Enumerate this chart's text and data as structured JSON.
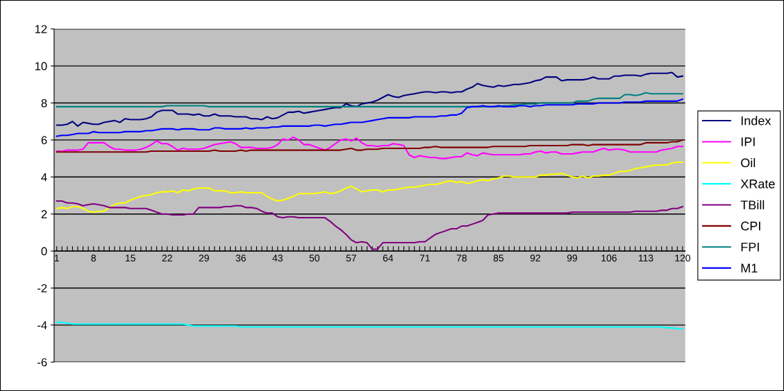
{
  "chart_data": {
    "type": "line",
    "categories": [
      "1",
      null,
      null,
      null,
      null,
      null,
      null,
      "8",
      null,
      null,
      null,
      null,
      null,
      null,
      "15",
      null,
      null,
      null,
      null,
      null,
      null,
      "22",
      null,
      null,
      null,
      null,
      null,
      null,
      "29",
      null,
      null,
      null,
      null,
      null,
      null,
      "36",
      null,
      null,
      null,
      null,
      null,
      null,
      "43",
      null,
      null,
      null,
      null,
      null,
      null,
      "50",
      null,
      null,
      null,
      null,
      null,
      null,
      "57",
      null,
      null,
      null,
      null,
      null,
      null,
      "64",
      null,
      null,
      null,
      null,
      null,
      null,
      "71",
      null,
      null,
      null,
      null,
      null,
      null,
      "78",
      null,
      null,
      null,
      null,
      null,
      null,
      "85",
      null,
      null,
      null,
      null,
      null,
      null,
      "92",
      null,
      null,
      null,
      null,
      null,
      null,
      "99",
      null,
      null,
      null,
      null,
      null,
      null,
      "106",
      null,
      null,
      null,
      null,
      null,
      null,
      "113",
      null,
      null,
      null,
      null,
      null,
      null,
      "120"
    ],
    "ylim": [
      -6,
      12
    ],
    "yticks": [
      -6,
      -4,
      -2,
      0,
      2,
      4,
      6,
      8,
      10,
      12
    ],
    "grid": "y",
    "legend": "right",
    "marker": "none",
    "line_style": "solid",
    "series": [
      {
        "name": "Index",
        "color": "#000080",
        "values": [
          6.8,
          6.8,
          6.85,
          7.0,
          6.75,
          6.95,
          6.9,
          6.85,
          6.85,
          6.95,
          7.0,
          7.05,
          6.95,
          7.15,
          7.1,
          7.1,
          7.1,
          7.15,
          7.25,
          7.5,
          7.6,
          7.6,
          7.6,
          7.4,
          7.4,
          7.4,
          7.35,
          7.4,
          7.3,
          7.3,
          7.4,
          7.3,
          7.3,
          7.3,
          7.25,
          7.25,
          7.25,
          7.15,
          7.15,
          7.1,
          7.25,
          7.15,
          7.2,
          7.35,
          7.5,
          7.5,
          7.55,
          7.45,
          7.5,
          7.55,
          7.6,
          7.65,
          7.7,
          7.75,
          7.75,
          7.95,
          7.85,
          7.8,
          7.95,
          8.0,
          8.05,
          8.15,
          8.3,
          8.45,
          8.35,
          8.3,
          8.4,
          8.45,
          8.5,
          8.55,
          8.6,
          8.6,
          8.55,
          8.6,
          8.6,
          8.55,
          8.6,
          8.6,
          8.75,
          8.85,
          9.05,
          8.95,
          8.9,
          8.85,
          8.95,
          8.9,
          8.95,
          9.0,
          9.0,
          9.05,
          9.1,
          9.2,
          9.25,
          9.4,
          9.4,
          9.4,
          9.2,
          9.25,
          9.25,
          9.25,
          9.25,
          9.3,
          9.4,
          9.3,
          9.3,
          9.3,
          9.45,
          9.45,
          9.5,
          9.5,
          9.5,
          9.45,
          9.55,
          9.6,
          9.6,
          9.6,
          9.6,
          9.65,
          9.4,
          9.45
        ]
      },
      {
        "name": "IPI",
        "color": "#ff00ff",
        "values": [
          5.4,
          5.4,
          5.45,
          5.45,
          5.45,
          5.5,
          5.85,
          5.85,
          5.85,
          5.85,
          5.65,
          5.5,
          5.5,
          5.45,
          5.45,
          5.45,
          5.5,
          5.6,
          5.75,
          5.95,
          5.8,
          5.8,
          5.65,
          5.45,
          5.55,
          5.5,
          5.5,
          5.5,
          5.55,
          5.65,
          5.75,
          5.8,
          5.85,
          5.9,
          5.8,
          5.6,
          5.6,
          5.6,
          5.55,
          5.55,
          5.55,
          5.6,
          5.75,
          6.05,
          6.0,
          6.15,
          6.0,
          5.75,
          5.75,
          5.65,
          5.55,
          5.45,
          5.6,
          5.8,
          6.0,
          6.05,
          5.95,
          6.1,
          5.85,
          5.7,
          5.7,
          5.65,
          5.7,
          5.7,
          5.8,
          5.75,
          5.7,
          5.2,
          5.05,
          5.15,
          5.1,
          5.05,
          5.05,
          5.0,
          5.0,
          5.05,
          5.1,
          5.1,
          5.3,
          5.2,
          5.15,
          5.3,
          5.25,
          5.2,
          5.2,
          5.2,
          5.2,
          5.2,
          5.2,
          5.25,
          5.25,
          5.35,
          5.4,
          5.3,
          5.35,
          5.35,
          5.25,
          5.25,
          5.25,
          5.3,
          5.35,
          5.35,
          5.35,
          5.45,
          5.55,
          5.45,
          5.5,
          5.5,
          5.45,
          5.35,
          5.35,
          5.35,
          5.35,
          5.35,
          5.35,
          5.45,
          5.5,
          5.55,
          5.65,
          5.65
        ]
      },
      {
        "name": "Oil",
        "color": "#ffff00",
        "values": [
          2.3,
          2.35,
          2.3,
          2.4,
          2.4,
          2.3,
          2.15,
          2.1,
          2.15,
          2.15,
          2.35,
          2.5,
          2.6,
          2.6,
          2.75,
          2.85,
          2.95,
          3.0,
          3.05,
          3.15,
          3.2,
          3.2,
          3.25,
          3.15,
          3.3,
          3.25,
          3.35,
          3.4,
          3.4,
          3.4,
          3.25,
          3.25,
          3.25,
          3.15,
          3.15,
          3.2,
          3.15,
          3.15,
          3.15,
          3.15,
          2.95,
          2.8,
          2.7,
          2.75,
          2.85,
          2.95,
          3.1,
          3.1,
          3.1,
          3.1,
          3.15,
          3.2,
          3.1,
          3.15,
          3.25,
          3.4,
          3.5,
          3.35,
          3.2,
          3.25,
          3.3,
          3.3,
          3.2,
          3.3,
          3.3,
          3.35,
          3.4,
          3.45,
          3.45,
          3.5,
          3.55,
          3.6,
          3.6,
          3.65,
          3.75,
          3.8,
          3.7,
          3.75,
          3.65,
          3.7,
          3.8,
          3.85,
          3.8,
          3.9,
          3.95,
          4.05,
          4.05,
          4.0,
          4.0,
          4.0,
          4.0,
          4.0,
          4.1,
          4.1,
          4.15,
          4.15,
          4.2,
          4.1,
          4.0,
          3.95,
          4.05,
          3.95,
          4.05,
          4.05,
          4.1,
          4.1,
          4.2,
          4.3,
          4.3,
          4.35,
          4.45,
          4.5,
          4.55,
          4.6,
          4.65,
          4.65,
          4.65,
          4.75,
          4.8,
          4.8
        ]
      },
      {
        "name": "XRate",
        "color": "#00ffff",
        "values": [
          -3.85,
          -3.85,
          -3.9,
          -3.95,
          -3.95,
          -3.95,
          -3.95,
          -3.95,
          -3.95,
          -3.95,
          -3.95,
          -3.95,
          -3.95,
          -3.95,
          -3.95,
          -3.95,
          -3.95,
          -3.95,
          -3.95,
          -3.95,
          -3.95,
          -3.95,
          -3.95,
          -3.95,
          -3.95,
          -4.0,
          -4.05,
          -4.05,
          -4.05,
          -4.05,
          -4.05,
          -4.05,
          -4.05,
          -4.05,
          -4.05,
          -4.1,
          -4.1,
          -4.1,
          -4.1,
          -4.1,
          -4.1,
          -4.1,
          -4.1,
          -4.1,
          -4.1,
          -4.1,
          -4.1,
          -4.1,
          -4.1,
          -4.1,
          -4.1,
          -4.1,
          -4.1,
          -4.1,
          -4.1,
          -4.1,
          -4.1,
          -4.1,
          -4.1,
          -4.1,
          -4.1,
          -4.1,
          -4.1,
          -4.1,
          -4.1,
          -4.1,
          -4.1,
          -4.1,
          -4.1,
          -4.1,
          -4.1,
          -4.1,
          -4.1,
          -4.1,
          -4.1,
          -4.1,
          -4.1,
          -4.1,
          -4.1,
          -4.1,
          -4.1,
          -4.1,
          -4.1,
          -4.1,
          -4.1,
          -4.1,
          -4.1,
          -4.1,
          -4.1,
          -4.1,
          -4.1,
          -4.1,
          -4.1,
          -4.1,
          -4.1,
          -4.1,
          -4.1,
          -4.1,
          -4.1,
          -4.1,
          -4.1,
          -4.1,
          -4.1,
          -4.1,
          -4.1,
          -4.1,
          -4.1,
          -4.1,
          -4.1,
          -4.1,
          -4.1,
          -4.1,
          -4.1,
          -4.1,
          -4.1,
          -4.1,
          -4.15,
          -4.15,
          -4.2,
          -4.2
        ]
      },
      {
        "name": "TBill",
        "color": "#800080",
        "values": [
          2.7,
          2.7,
          2.6,
          2.6,
          2.55,
          2.45,
          2.5,
          2.55,
          2.5,
          2.45,
          2.35,
          2.35,
          2.35,
          2.35,
          2.3,
          2.3,
          2.3,
          2.3,
          2.2,
          2.1,
          2.0,
          2.0,
          1.95,
          1.95,
          1.95,
          2.0,
          2.0,
          2.35,
          2.35,
          2.35,
          2.35,
          2.35,
          2.4,
          2.4,
          2.45,
          2.45,
          2.35,
          2.35,
          2.3,
          2.15,
          2.05,
          2.05,
          1.85,
          1.8,
          1.85,
          1.85,
          1.8,
          1.8,
          1.8,
          1.8,
          1.8,
          1.8,
          1.6,
          1.35,
          1.15,
          0.9,
          0.6,
          0.45,
          0.5,
          0.45,
          0.1,
          0.1,
          0.45,
          0.45,
          0.45,
          0.45,
          0.45,
          0.45,
          0.45,
          0.5,
          0.5,
          0.7,
          0.9,
          1.0,
          1.1,
          1.2,
          1.2,
          1.35,
          1.35,
          1.45,
          1.55,
          1.65,
          1.95,
          2.0,
          2.05,
          2.05,
          2.05,
          2.05,
          2.05,
          2.05,
          2.05,
          2.05,
          2.05,
          2.05,
          2.05,
          2.05,
          2.05,
          2.05,
          2.1,
          2.1,
          2.1,
          2.1,
          2.1,
          2.1,
          2.1,
          2.1,
          2.1,
          2.1,
          2.1,
          2.1,
          2.15,
          2.15,
          2.15,
          2.15,
          2.15,
          2.2,
          2.2,
          2.3,
          2.3,
          2.4
        ]
      },
      {
        "name": "CPI",
        "color": "#800000",
        "values": [
          5.35,
          5.35,
          5.35,
          5.35,
          5.35,
          5.35,
          5.35,
          5.35,
          5.35,
          5.35,
          5.35,
          5.35,
          5.35,
          5.35,
          5.35,
          5.35,
          5.35,
          5.35,
          5.4,
          5.4,
          5.4,
          5.4,
          5.4,
          5.4,
          5.4,
          5.4,
          5.4,
          5.4,
          5.4,
          5.4,
          5.45,
          5.4,
          5.4,
          5.4,
          5.4,
          5.45,
          5.4,
          5.45,
          5.45,
          5.45,
          5.45,
          5.45,
          5.45,
          5.45,
          5.45,
          5.45,
          5.45,
          5.45,
          5.45,
          5.45,
          5.45,
          5.45,
          5.45,
          5.45,
          5.45,
          5.5,
          5.55,
          5.45,
          5.45,
          5.5,
          5.5,
          5.5,
          5.55,
          5.55,
          5.55,
          5.55,
          5.55,
          5.55,
          5.55,
          5.55,
          5.6,
          5.6,
          5.65,
          5.6,
          5.6,
          5.6,
          5.6,
          5.6,
          5.6,
          5.6,
          5.6,
          5.6,
          5.6,
          5.65,
          5.65,
          5.65,
          5.65,
          5.65,
          5.65,
          5.65,
          5.7,
          5.7,
          5.7,
          5.7,
          5.7,
          5.7,
          5.7,
          5.7,
          5.75,
          5.75,
          5.75,
          5.7,
          5.75,
          5.75,
          5.75,
          5.75,
          5.75,
          5.75,
          5.75,
          5.75,
          5.75,
          5.75,
          5.85,
          5.85,
          5.85,
          5.85,
          5.85,
          5.9,
          5.9,
          6.0
        ]
      },
      {
        "name": "FPI",
        "color": "#008080",
        "values": [
          7.8,
          7.8,
          7.8,
          7.8,
          7.8,
          7.8,
          7.8,
          7.8,
          7.8,
          7.8,
          7.8,
          7.8,
          7.8,
          7.8,
          7.8,
          7.8,
          7.8,
          7.8,
          7.8,
          7.8,
          7.8,
          7.85,
          7.85,
          7.85,
          7.85,
          7.85,
          7.85,
          7.85,
          7.85,
          7.8,
          7.8,
          7.8,
          7.8,
          7.8,
          7.8,
          7.8,
          7.8,
          7.8,
          7.8,
          7.8,
          7.8,
          7.8,
          7.8,
          7.8,
          7.8,
          7.8,
          7.8,
          7.8,
          7.8,
          7.8,
          7.8,
          7.8,
          7.8,
          7.8,
          7.8,
          7.8,
          7.8,
          7.8,
          7.8,
          7.8,
          7.8,
          7.8,
          7.8,
          7.8,
          7.8,
          7.8,
          7.8,
          7.8,
          7.8,
          7.8,
          7.8,
          7.8,
          7.8,
          7.8,
          7.8,
          7.8,
          7.8,
          7.8,
          7.8,
          7.8,
          7.8,
          7.8,
          7.8,
          7.8,
          7.8,
          7.85,
          7.85,
          7.9,
          7.9,
          7.95,
          7.95,
          7.95,
          8.0,
          8.0,
          8.0,
          8.0,
          8.0,
          8.0,
          8.0,
          8.1,
          8.1,
          8.1,
          8.2,
          8.25,
          8.25,
          8.25,
          8.25,
          8.25,
          8.45,
          8.45,
          8.4,
          8.45,
          8.55,
          8.5,
          8.5,
          8.5,
          8.5,
          8.5,
          8.5,
          8.5
        ]
      },
      {
        "name": "M1",
        "color": "#0000ff",
        "values": [
          6.2,
          6.25,
          6.25,
          6.3,
          6.35,
          6.35,
          6.35,
          6.45,
          6.4,
          6.4,
          6.4,
          6.4,
          6.4,
          6.45,
          6.45,
          6.45,
          6.45,
          6.5,
          6.5,
          6.55,
          6.6,
          6.6,
          6.6,
          6.55,
          6.6,
          6.6,
          6.6,
          6.55,
          6.55,
          6.55,
          6.65,
          6.65,
          6.6,
          6.6,
          6.6,
          6.6,
          6.65,
          6.6,
          6.65,
          6.65,
          6.65,
          6.7,
          6.7,
          6.75,
          6.75,
          6.75,
          6.75,
          6.75,
          6.75,
          6.8,
          6.8,
          6.75,
          6.8,
          6.85,
          6.85,
          6.9,
          6.95,
          6.95,
          6.95,
          7.0,
          7.05,
          7.1,
          7.15,
          7.2,
          7.2,
          7.2,
          7.2,
          7.2,
          7.25,
          7.25,
          7.25,
          7.25,
          7.25,
          7.3,
          7.3,
          7.35,
          7.35,
          7.45,
          7.75,
          7.8,
          7.8,
          7.85,
          7.8,
          7.8,
          7.85,
          7.8,
          7.8,
          7.8,
          7.85,
          7.85,
          7.8,
          7.85,
          7.85,
          7.9,
          7.9,
          7.9,
          7.9,
          7.9,
          7.9,
          7.95,
          7.95,
          7.95,
          7.95,
          8.0,
          8.0,
          8.0,
          8.0,
          8.0,
          8.05,
          8.05,
          8.05,
          8.05,
          8.1,
          8.1,
          8.1,
          8.1,
          8.1,
          8.1,
          8.1,
          8.2
        ]
      }
    ]
  }
}
